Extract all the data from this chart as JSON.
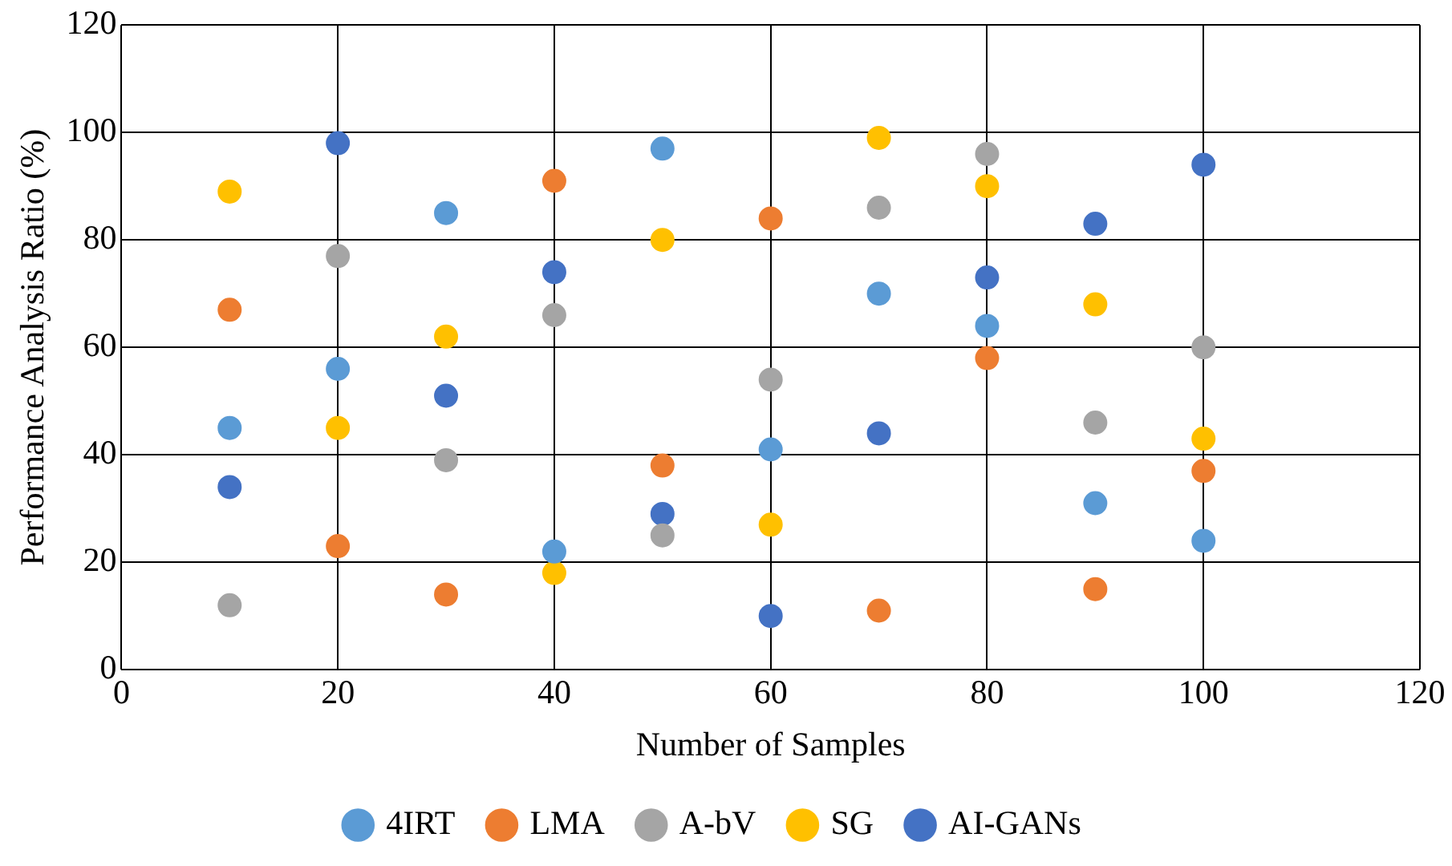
{
  "chart_data": {
    "type": "scatter",
    "xlabel": "Number of Samples",
    "ylabel": "Performance Analysis Ratio (%)",
    "x": [
      10,
      20,
      30,
      40,
      50,
      60,
      70,
      80,
      90,
      100
    ],
    "series": [
      {
        "name": "4IRT",
        "color": "#5b9bd5",
        "values": [
          45,
          56,
          85,
          22,
          97,
          41,
          70,
          64,
          31,
          24
        ]
      },
      {
        "name": "LMA",
        "color": "#ed7d31",
        "values": [
          67,
          23,
          14,
          91,
          38,
          84,
          11,
          58,
          15,
          37
        ]
      },
      {
        "name": "A-bV",
        "color": "#a5a5a5",
        "values": [
          12,
          77,
          39,
          66,
          25,
          54,
          86,
          96,
          46,
          60
        ]
      },
      {
        "name": "SG",
        "color": "#ffc000",
        "values": [
          89,
          45,
          62,
          18,
          80,
          27,
          99,
          90,
          68,
          43
        ]
      },
      {
        "name": "AI-GANs",
        "color": "#4472c4",
        "values": [
          34,
          98,
          51,
          74,
          29,
          10,
          44,
          73,
          83,
          94
        ]
      }
    ],
    "xlim": [
      0,
      120
    ],
    "xticks": [
      0,
      20,
      40,
      60,
      80,
      100,
      120
    ],
    "ylim": [
      0,
      120
    ],
    "yticks": [
      0,
      20,
      40,
      60,
      80,
      100,
      120
    ],
    "grid": true,
    "legend": "bottom",
    "marker": "circle"
  }
}
